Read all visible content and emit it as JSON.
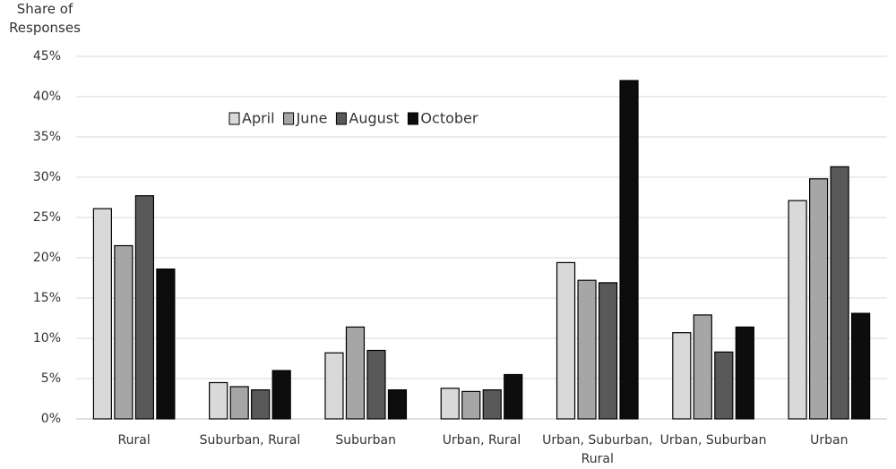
{
  "chart_data": {
    "type": "bar",
    "y_label": "Share of Responses",
    "categories": [
      "Rural",
      "Suburban, Rural",
      "Suburban",
      "Urban, Rural",
      "Urban, Suburban, Rural",
      "Urban, Suburban",
      "Urban"
    ],
    "series": [
      {
        "name": "April",
        "color": "#d9d9d9",
        "values": [
          26.1,
          4.5,
          8.2,
          3.8,
          19.4,
          10.7,
          27.1
        ]
      },
      {
        "name": "June",
        "color": "#a6a6a6",
        "values": [
          21.5,
          4.0,
          11.4,
          3.4,
          17.2,
          12.9,
          29.8
        ]
      },
      {
        "name": "August",
        "color": "#595959",
        "values": [
          27.7,
          3.6,
          8.5,
          3.6,
          16.9,
          8.3,
          31.3
        ]
      },
      {
        "name": "October",
        "color": "#0d0d0d",
        "values": [
          18.6,
          6.0,
          3.6,
          5.5,
          42.0,
          11.4,
          13.1
        ]
      }
    ],
    "ylim": [
      0,
      45
    ],
    "yticks": [
      {
        "value": 0,
        "label": "0%"
      },
      {
        "value": 5,
        "label": "5%"
      },
      {
        "value": 10,
        "label": "10%"
      },
      {
        "value": 15,
        "label": "15%"
      },
      {
        "value": 20,
        "label": "20%"
      },
      {
        "value": 25,
        "label": "25%"
      },
      {
        "value": 30,
        "label": "30%"
      },
      {
        "value": 35,
        "label": "35%"
      },
      {
        "value": 40,
        "label": "40%"
      },
      {
        "value": 45,
        "label": "45%"
      }
    ],
    "grid": true
  }
}
